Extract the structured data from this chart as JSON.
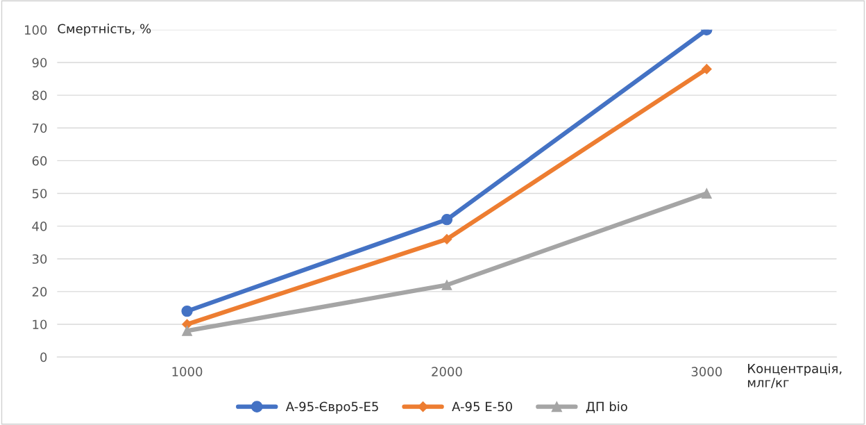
{
  "chart_data": {
    "type": "line",
    "ylabel": "Смертність, %",
    "xlabel": "Концентрація,\nмлг/кг",
    "categories": [
      "1000",
      "2000",
      "3000"
    ],
    "ylim": [
      0,
      100
    ],
    "yticks": [
      0,
      10,
      20,
      30,
      40,
      50,
      60,
      70,
      80,
      90,
      100
    ],
    "grid": "y",
    "legend": "bottom",
    "series": [
      {
        "name": "A-95-Євро5-E5",
        "color": "#4472c4",
        "marker": "circle",
        "values": [
          14,
          42,
          100
        ]
      },
      {
        "name": "A-95 E-50",
        "color": "#ed7d31",
        "marker": "diamond",
        "values": [
          10,
          36,
          88
        ]
      },
      {
        "name": "ДП bio",
        "color": "#a5a5a5",
        "marker": "triangle",
        "values": [
          8,
          22,
          50
        ]
      }
    ]
  }
}
